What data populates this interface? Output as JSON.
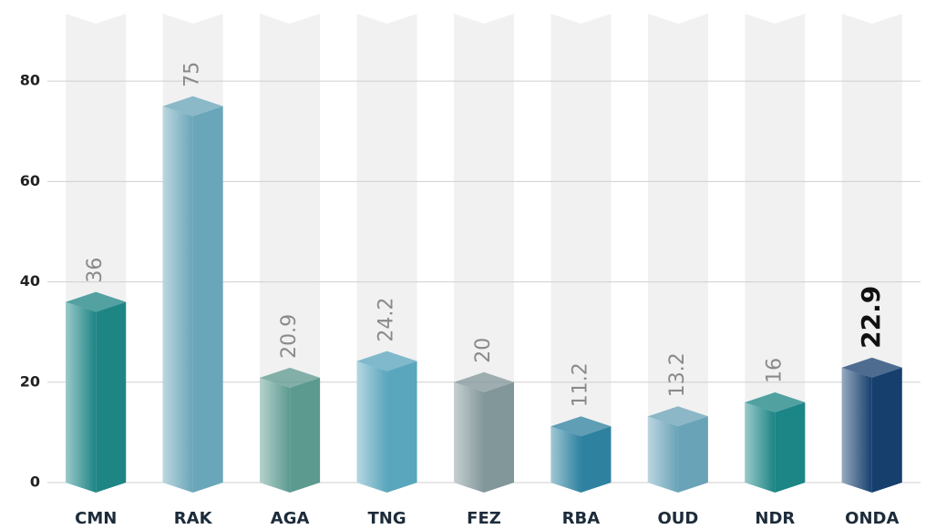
{
  "chart_data": {
    "type": "bar",
    "categories": [
      "CMN",
      "RAK",
      "AGA",
      "TNG",
      "FEZ",
      "RBA",
      "OUD",
      "NDR",
      "ONDA"
    ],
    "values": [
      36,
      75,
      20.9,
      24.2,
      20,
      11.2,
      13.2,
      16,
      22.9
    ],
    "colors": [
      "#1e8585",
      "#6aa6b9",
      "#5c9a90",
      "#5aa6bd",
      "#82979a",
      "#2e82a0",
      "#69a3b8",
      "#1c8585",
      "#163f6e"
    ],
    "highlight": "ONDA",
    "ylim": [
      0,
      92
    ],
    "yticks": [
      0,
      20,
      40,
      60,
      80
    ],
    "grid": true
  }
}
